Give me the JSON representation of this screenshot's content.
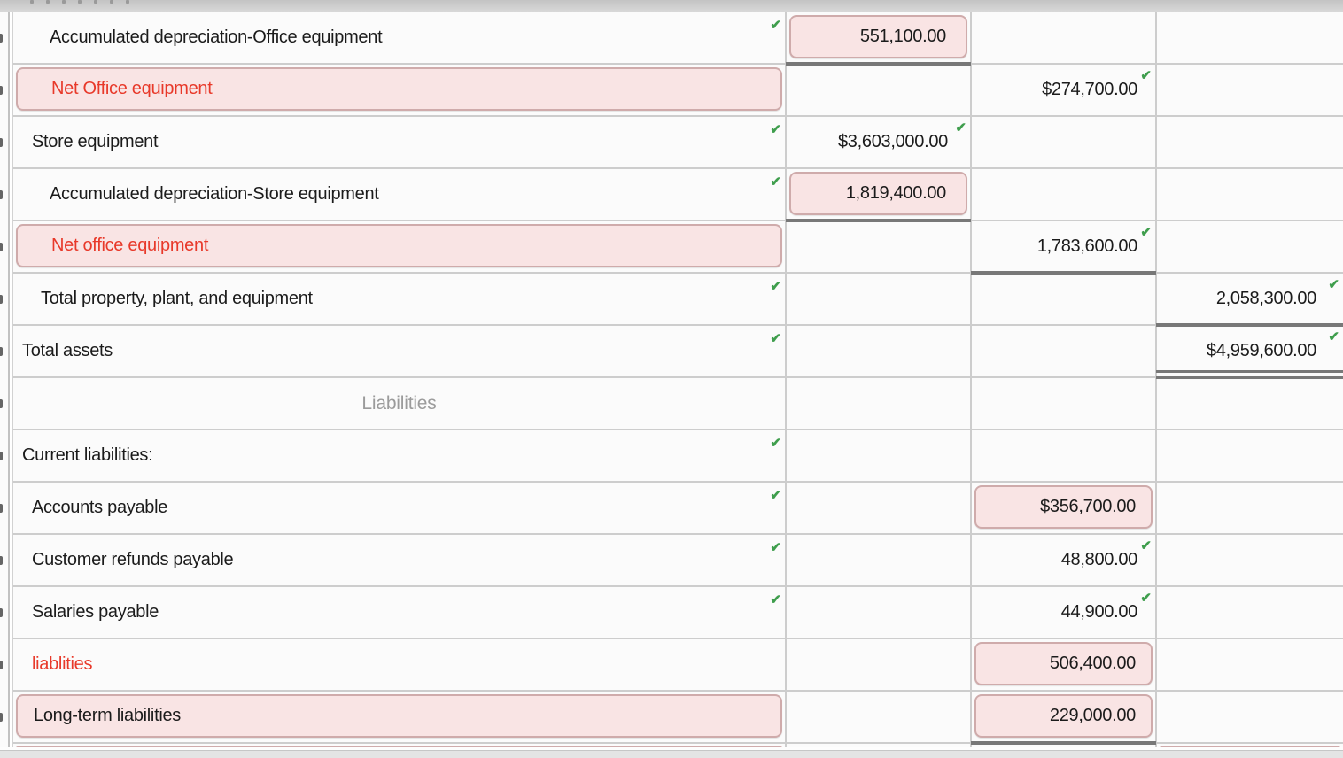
{
  "icons": {
    "check": "✔"
  },
  "colors": {
    "error_fill": "#f9e4e4",
    "error_border": "#cfabab",
    "error_text": "#e8392a",
    "correct_check": "#3f9e4d",
    "rule_line": "#787878",
    "section_header_text": "#9b9b9b"
  },
  "table": {
    "columns": [
      "description",
      "amount-col-1",
      "amount-col-2",
      "amount-col-3"
    ],
    "rows": [
      {
        "name": "accumulated-depreciation-office-equipment",
        "label": "Accumulated depreciation-Office equipment",
        "indent": 3,
        "check_after_label": true,
        "cells": {
          "c1": {
            "value": "551,100.00",
            "box": true,
            "underline": "single"
          }
        }
      },
      {
        "name": "net-office-equipment",
        "label": "Net Office equipment",
        "indent": 3,
        "label_box": true,
        "label_color": "red",
        "cells": {
          "c2": {
            "value": "$274,700.00",
            "check": true
          }
        }
      },
      {
        "name": "store-equipment",
        "label": "Store equipment",
        "indent": 1,
        "check_after_label": true,
        "cells": {
          "c1": {
            "value": "$3,603,000.00",
            "check": true
          }
        }
      },
      {
        "name": "accumulated-depreciation-store-equipment",
        "label": "Accumulated depreciation-Store equipment",
        "indent": 3,
        "check_after_label": true,
        "cells": {
          "c1": {
            "value": "1,819,400.00",
            "box": true,
            "underline": "single"
          }
        }
      },
      {
        "name": "net-office-equipment-2",
        "label": "Net office equipment",
        "indent": 3,
        "label_box": true,
        "label_color": "red",
        "cells": {
          "c2": {
            "value": "1,783,600.00",
            "check": true,
            "underline": "single"
          }
        }
      },
      {
        "name": "total-property-plant-and-equipment",
        "label": "Total property, plant, and equipment",
        "indent": 2,
        "check_after_label": true,
        "cells": {
          "c3": {
            "value": "2,058,300.00",
            "check": true,
            "underline": "single"
          }
        }
      },
      {
        "name": "total-assets",
        "label": "Total assets",
        "indent": 0,
        "check_after_label": true,
        "cells": {
          "c3": {
            "value": "$4,959,600.00",
            "check": true,
            "underline": "double"
          }
        }
      },
      {
        "name": "liabilities-header",
        "label": "Liabilities",
        "header": true,
        "cells": {}
      },
      {
        "name": "current-liabilities",
        "label": "Current liabilities:",
        "indent": 0,
        "check_after_label": true,
        "cells": {}
      },
      {
        "name": "accounts-payable",
        "label": "Accounts payable",
        "indent": 1,
        "check_after_label": true,
        "cells": {
          "c2": {
            "value": "$356,700.00",
            "box": true
          }
        }
      },
      {
        "name": "customer-refunds-payable",
        "label": "Customer refunds payable",
        "indent": 1,
        "check_after_label": true,
        "cells": {
          "c2": {
            "value": "48,800.00",
            "check": true
          }
        }
      },
      {
        "name": "salaries-payable",
        "label": "Salaries payable",
        "indent": 1,
        "check_after_label": true,
        "cells": {
          "c2": {
            "value": "44,900.00",
            "check": true
          }
        }
      },
      {
        "name": "liablities",
        "label": "liablities",
        "indent": 1,
        "label_color": "red",
        "cells": {
          "c2": {
            "value": "506,400.00",
            "box": true
          }
        }
      },
      {
        "name": "long-term-liabilities",
        "label": "Long-term liabilities",
        "indent": 1,
        "label_box": true,
        "cells": {
          "c2": {
            "value": "229,000.00",
            "box": true,
            "underline": "single"
          }
        }
      },
      {
        "name": "next-row-partial",
        "label": "",
        "partial": true,
        "label_box": true,
        "cells": {
          "c3": {
            "value": "",
            "box": true
          }
        }
      }
    ]
  }
}
